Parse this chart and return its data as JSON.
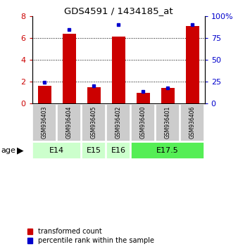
{
  "title": "GDS4591 / 1434185_at",
  "samples": [
    "GSM936403",
    "GSM936404",
    "GSM936405",
    "GSM936402",
    "GSM936400",
    "GSM936401",
    "GSM936406"
  ],
  "transformed_count": [
    1.6,
    6.4,
    1.5,
    6.1,
    1.0,
    1.4,
    7.1
  ],
  "percentile_rank": [
    24,
    85,
    20,
    90,
    14,
    18,
    90
  ],
  "age_group_spans": [
    {
      "label": "E14",
      "start": 0,
      "end": 2,
      "color": "#ccffcc"
    },
    {
      "label": "E15",
      "start": 2,
      "end": 3,
      "color": "#ccffcc"
    },
    {
      "label": "E16",
      "start": 3,
      "end": 4,
      "color": "#ccffcc"
    },
    {
      "label": "E17.5",
      "start": 4,
      "end": 7,
      "color": "#55ee55"
    }
  ],
  "ylim_left": [
    0,
    8
  ],
  "ylim_right": [
    0,
    100
  ],
  "yticks_left": [
    0,
    2,
    4,
    6,
    8
  ],
  "yticks_right": [
    0,
    25,
    50,
    75,
    100
  ],
  "bar_color": "#cc0000",
  "dot_color": "#0000cc",
  "bar_width": 0.55,
  "sample_box_color": "#cccccc",
  "legend_labels": [
    "transformed count",
    "percentile rank within the sample"
  ],
  "legend_colors": [
    "#cc0000",
    "#0000cc"
  ],
  "background_color": "#ffffff"
}
